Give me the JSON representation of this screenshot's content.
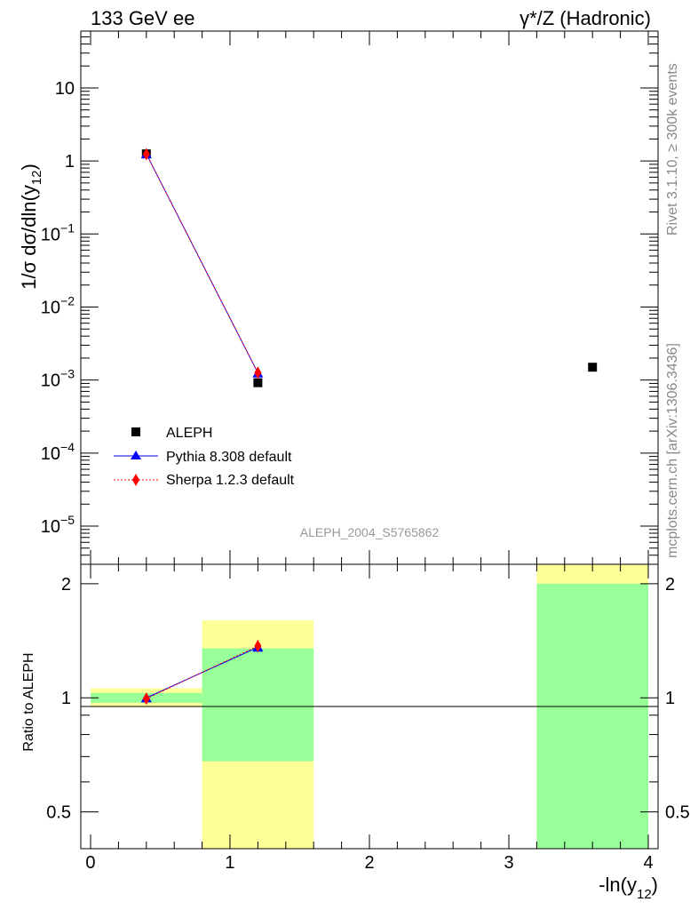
{
  "header": {
    "left": "133 GeV ee",
    "right": "γ*/Z (Hadronic)"
  },
  "side_labels": {
    "rivet": "Rivet 3.1.10, ≥ 300k events",
    "mcplots": "mcplots.cern.ch [arXiv:1306.3436]"
  },
  "analysis_id": "ALEPH_2004_S5765862",
  "chart_data": [
    {
      "type": "scatter",
      "panel": "main",
      "ylabel": "1/σ dσ/dln(y12)",
      "yscale": "log",
      "ylim": [
        3e-06,
        60
      ],
      "xlim": [
        -0.07,
        4.07
      ],
      "ytick_labels": [
        "10",
        "1",
        "10−1",
        "10−2",
        "10−3",
        "10−4",
        "10−5"
      ],
      "ytick_values": [
        10,
        1,
        0.1,
        0.01,
        0.001,
        0.0001,
        1e-05
      ],
      "legend_position": "bottom-left",
      "series": [
        {
          "name": "ALEPH",
          "marker": "square",
          "color": "#000000",
          "x": [
            0.4,
            1.2,
            3.6
          ],
          "y": [
            1.25,
            0.00092,
            0.0015
          ]
        },
        {
          "name": "Pythia 8.308 default",
          "marker": "triangle",
          "color": "#0000ff",
          "x": [
            0.4,
            1.2
          ],
          "y": [
            1.25,
            0.00125
          ]
        },
        {
          "name": "Sherpa 1.2.3 default",
          "marker": "diamond",
          "color": "#ff0000",
          "x": [
            0.4,
            1.2
          ],
          "y": [
            1.24,
            0.00126
          ]
        }
      ]
    },
    {
      "type": "line",
      "panel": "ratio",
      "xlabel": "-ln(y12)",
      "ylabel": "Ratio to ALEPH",
      "yscale": "log",
      "ylim": [
        0.4,
        2.25
      ],
      "xlim": [
        -0.07,
        4.07
      ],
      "xtick_labels": [
        "0",
        "1",
        "2",
        "3",
        "4"
      ],
      "xtick_values": [
        0,
        1,
        2,
        3,
        4
      ],
      "ytick_labels": [
        "2",
        "1",
        "0.5"
      ],
      "ytick_values": [
        2,
        1,
        0.5
      ],
      "reference_line": 1,
      "bands": [
        {
          "x0": 0.0,
          "x1": 0.8,
          "yellow": [
            0.945,
            1.06
          ],
          "green": [
            0.97,
            1.03
          ]
        },
        {
          "x0": 0.8,
          "x1": 1.6,
          "yellow": [
            0.38,
            1.6
          ],
          "green": [
            0.68,
            1.35
          ]
        },
        {
          "x0": 3.2,
          "x1": 4.0,
          "yellow": [
            0.38,
            2.3
          ],
          "green": [
            0.38,
            2.0
          ]
        }
      ],
      "series": [
        {
          "name": "Pythia 8.308 default",
          "color": "#0000ff",
          "x": [
            0.4,
            1.2
          ],
          "y": [
            1.0,
            1.36
          ],
          "err": [
            0.0,
            0.04
          ]
        },
        {
          "name": "Sherpa 1.2.3 default",
          "color": "#ff0000",
          "x": [
            0.4,
            1.2
          ],
          "y": [
            0.995,
            1.37
          ],
          "err": [
            0.0,
            0.05
          ]
        }
      ]
    }
  ]
}
